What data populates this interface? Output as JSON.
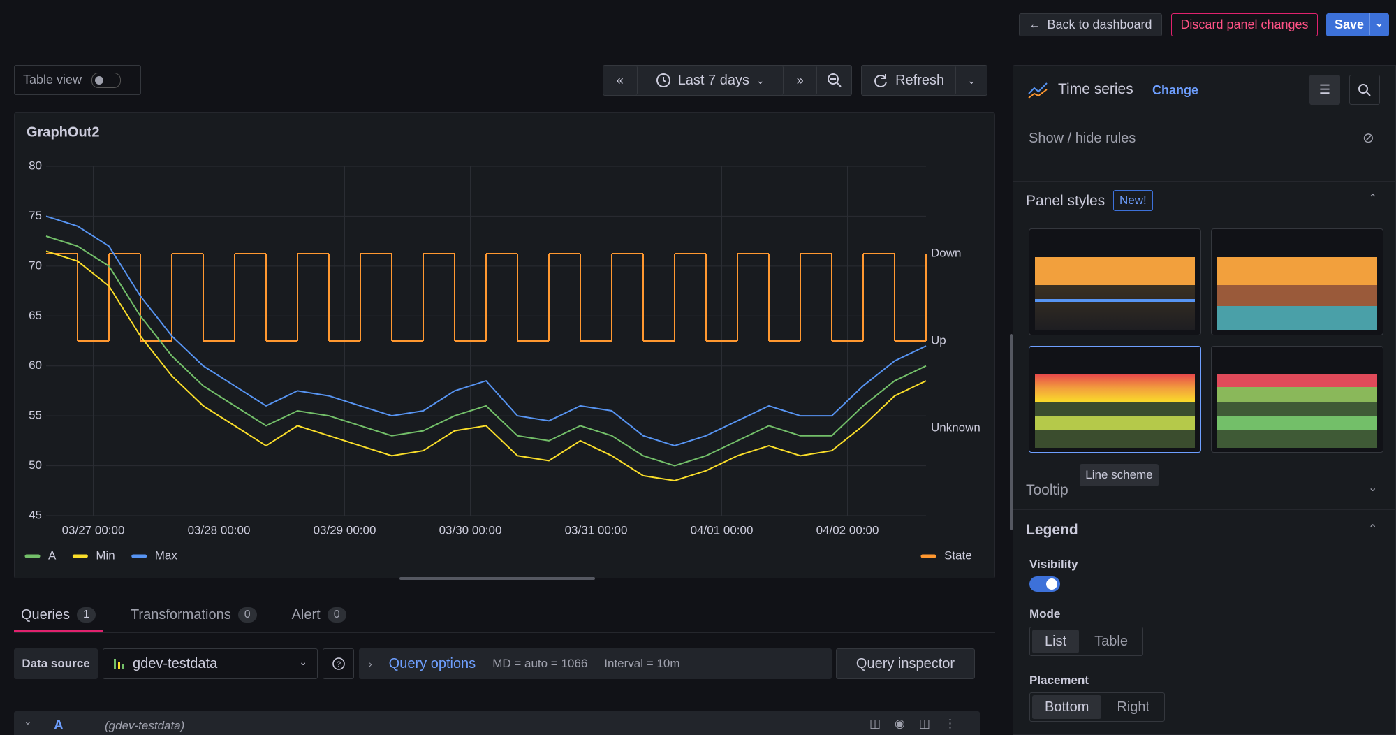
{
  "topbar": {
    "back": "Back to dashboard",
    "discard": "Discard panel changes",
    "save": "Save"
  },
  "toolbar": {
    "table_view": "Table view",
    "time_range": "Last 7 days",
    "refresh": "Refresh"
  },
  "chart_data": {
    "type": "line",
    "title": "GraphOut2",
    "x": [
      "03/26 15:00",
      "03/26 21:00",
      "03/27 03:00",
      "03/27 09:00",
      "03/27 15:00",
      "03/27 21:00",
      "03/28 03:00",
      "03/28 09:00",
      "03/28 15:00",
      "03/28 21:00",
      "03/29 03:00",
      "03/29 09:00",
      "03/29 15:00",
      "03/29 21:00",
      "03/30 03:00",
      "03/30 09:00",
      "03/30 15:00",
      "03/30 21:00",
      "03/31 03:00",
      "03/31 09:00",
      "03/31 15:00",
      "03/31 21:00",
      "04/01 03:00",
      "04/01 09:00",
      "04/01 15:00",
      "04/01 21:00",
      "04/02 03:00",
      "04/02 09:00",
      "04/02 15:00"
    ],
    "series": [
      {
        "name": "A",
        "color": "#73bf69",
        "values": [
          73,
          72,
          70,
          65,
          61,
          58,
          56,
          54,
          55.5,
          55,
          54,
          53,
          53.5,
          55,
          56,
          53,
          52.5,
          54,
          53,
          51,
          50,
          51,
          52.5,
          54,
          53,
          53,
          56,
          58.5,
          60
        ]
      },
      {
        "name": "Min",
        "color": "#fade2a",
        "values": [
          71.5,
          70.5,
          68,
          63,
          59,
          56,
          54,
          52,
          54,
          53,
          52,
          51,
          51.5,
          53.5,
          54,
          51,
          50.5,
          52.5,
          51,
          49,
          48.5,
          49.5,
          51,
          52,
          51,
          51.5,
          54,
          57,
          58.5
        ]
      },
      {
        "name": "Max",
        "color": "#5794f2",
        "values": [
          75,
          74,
          72,
          67,
          63,
          60,
          58,
          56,
          57.5,
          57,
          56,
          55,
          55.5,
          57.5,
          58.5,
          55,
          54.5,
          56,
          55.5,
          53,
          52,
          53,
          54.5,
          56,
          55,
          55,
          58,
          60.5,
          62
        ]
      },
      {
        "name": "State",
        "color": "#ff9830",
        "axis": "y2",
        "values": [
          "Down",
          "Up",
          "Down",
          "Up",
          "Down",
          "Up",
          "Down",
          "Up",
          "Down",
          "Up",
          "Down",
          "Up",
          "Down",
          "Up",
          "Down",
          "Up",
          "Down",
          "Up",
          "Down",
          "Up",
          "Down",
          "Up",
          "Down",
          "Up",
          "Down",
          "Up",
          "Down",
          "Up",
          "Down"
        ]
      }
    ],
    "xlim": [
      "03/26 15:00",
      "04/02 15:00"
    ],
    "xticks": [
      "03/27 00:00",
      "03/28 00:00",
      "03/29 00:00",
      "03/30 00:00",
      "03/31 00:00",
      "04/01 00:00",
      "04/02 00:00"
    ],
    "ylim": [
      45,
      80
    ],
    "yticks": [
      45,
      50,
      55,
      60,
      65,
      70,
      75,
      80
    ],
    "y2categories": [
      "Down",
      "Up",
      "Unknown"
    ],
    "grid": true,
    "legend": "bottom"
  },
  "tabs": [
    {
      "label": "Queries",
      "count": 1
    },
    {
      "label": "Transformations",
      "count": 0
    },
    {
      "label": "Alert",
      "count": 0
    }
  ],
  "query": {
    "data_source_label": "Data source",
    "data_source": "gdev-testdata",
    "options": "Query options",
    "md": "MD = auto = 1066",
    "interval": "Interval = 10m",
    "inspector": "Query inspector",
    "ref_id": "A",
    "ref_source": "(gdev-testdata)"
  },
  "options_pane": {
    "viz": "Time series",
    "change": "Change",
    "rules": "Show / hide rules",
    "panel_styles": "Panel styles",
    "new_badge": "New!",
    "tooltip_hint": "Line scheme",
    "tooltip": "Tooltip",
    "legend": "Legend",
    "visibility": "Visibility",
    "mode": "Mode",
    "mode_options": [
      "List",
      "Table"
    ],
    "placement": "Placement",
    "placement_options": [
      "Bottom",
      "Right"
    ]
  }
}
